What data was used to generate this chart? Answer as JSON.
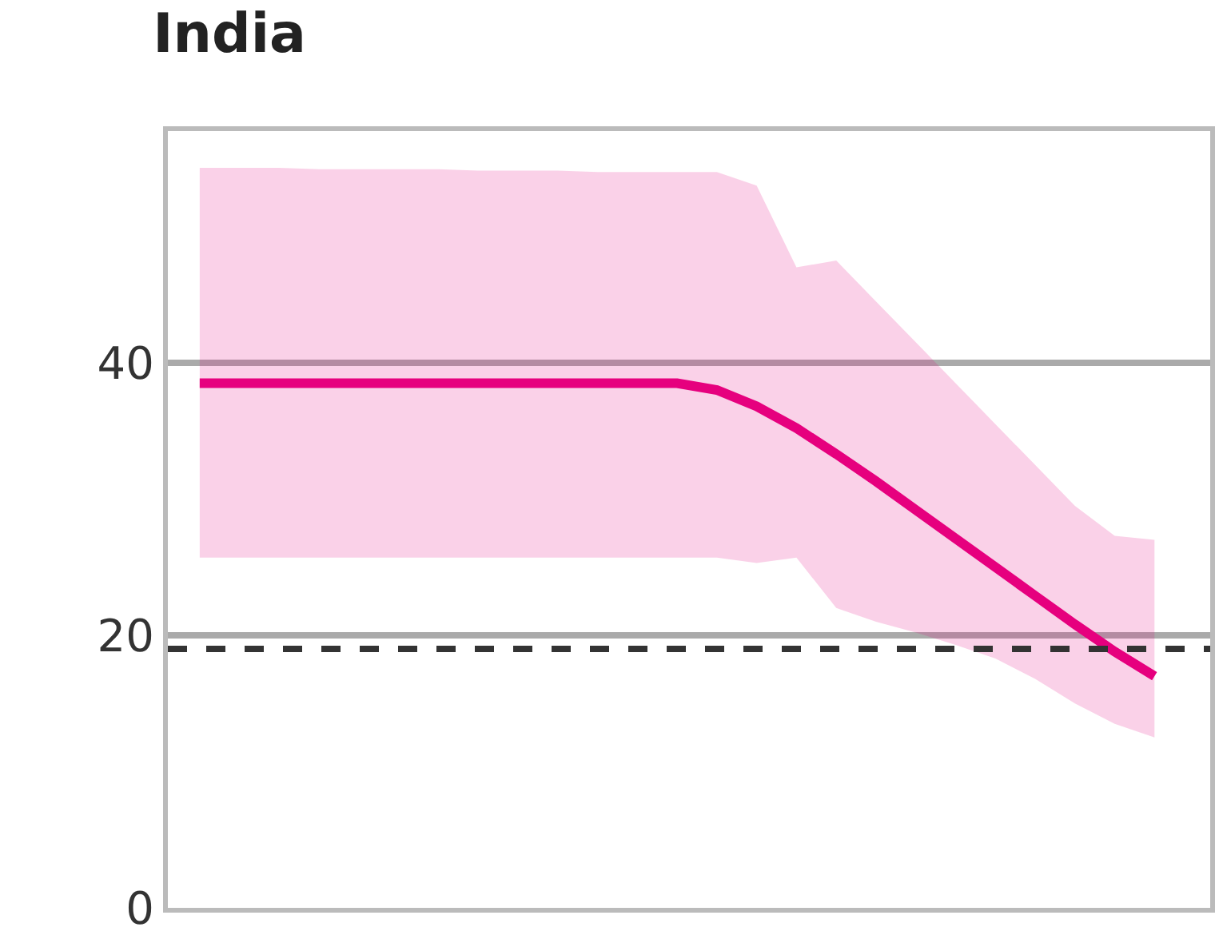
{
  "chart_data": {
    "type": "line",
    "title": "India",
    "categories": [
      null,
      null,
      null,
      null,
      null,
      null,
      null,
      null,
      null,
      null,
      null,
      null,
      null,
      null,
      null,
      null,
      null,
      null,
      null,
      null,
      null,
      null,
      null,
      null,
      null
    ],
    "series": [
      {
        "color": "#e6007e",
        "values": [
          38.5,
          38.5,
          38.5,
          38.5,
          38.5,
          38.5,
          38.5,
          38.5,
          38.5,
          38.5,
          38.5,
          38.5,
          38.5,
          38.0,
          36.8,
          35.2,
          33.3,
          31.3,
          29.2,
          27.1,
          25.0,
          22.9,
          20.8,
          18.8,
          17.0
        ],
        "lower": [
          25.7,
          25.7,
          25.7,
          25.7,
          25.7,
          25.7,
          25.7,
          25.7,
          25.7,
          25.7,
          25.7,
          25.7,
          25.7,
          25.7,
          25.3,
          25.7,
          22.0,
          21.0,
          20.2,
          19.3,
          18.3,
          16.8,
          15.0,
          13.5,
          12.5
        ],
        "upper": [
          54.3,
          54.3,
          54.3,
          54.2,
          54.2,
          54.2,
          54.2,
          54.1,
          54.1,
          54.1,
          54.0,
          54.0,
          54.0,
          54.0,
          53.0,
          47.0,
          47.5,
          44.5,
          41.5,
          38.5,
          35.5,
          32.5,
          29.5,
          27.3,
          27.0
        ]
      }
    ],
    "ylim": [
      0,
      57
    ],
    "yticks": [
      0,
      20,
      40
    ],
    "grid": "y",
    "ref_lines": [
      {
        "axis": "y",
        "value": 19,
        "color": "#333333",
        "line_style": "dashed"
      }
    ]
  }
}
